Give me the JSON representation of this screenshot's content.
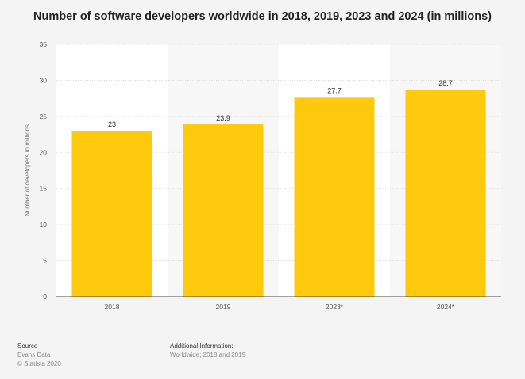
{
  "chart_data": {
    "type": "bar",
    "title": "Number of software developers worldwide in 2018, 2019, 2023 and 2024 (in millions)",
    "xlabel": "",
    "ylabel": "Number of developers in millions",
    "categories": [
      "2018",
      "2019",
      "2023*",
      "2024*"
    ],
    "values": [
      23,
      23.9,
      27.7,
      28.7
    ],
    "value_labels": [
      "23",
      "23.9",
      "27.7",
      "28.7"
    ],
    "ylim": [
      0,
      35
    ],
    "yticks": [
      0,
      5,
      10,
      15,
      20,
      25,
      30,
      35
    ],
    "grid": true,
    "legend": "none",
    "bar_color": "#ffc90e"
  },
  "footer": {
    "source_heading": "Source",
    "source_lines": [
      "Evans Data",
      "© Statista 2020"
    ],
    "info_heading": "Additional Information:",
    "info_text": "Worldwide; 2018 and 2019"
  }
}
